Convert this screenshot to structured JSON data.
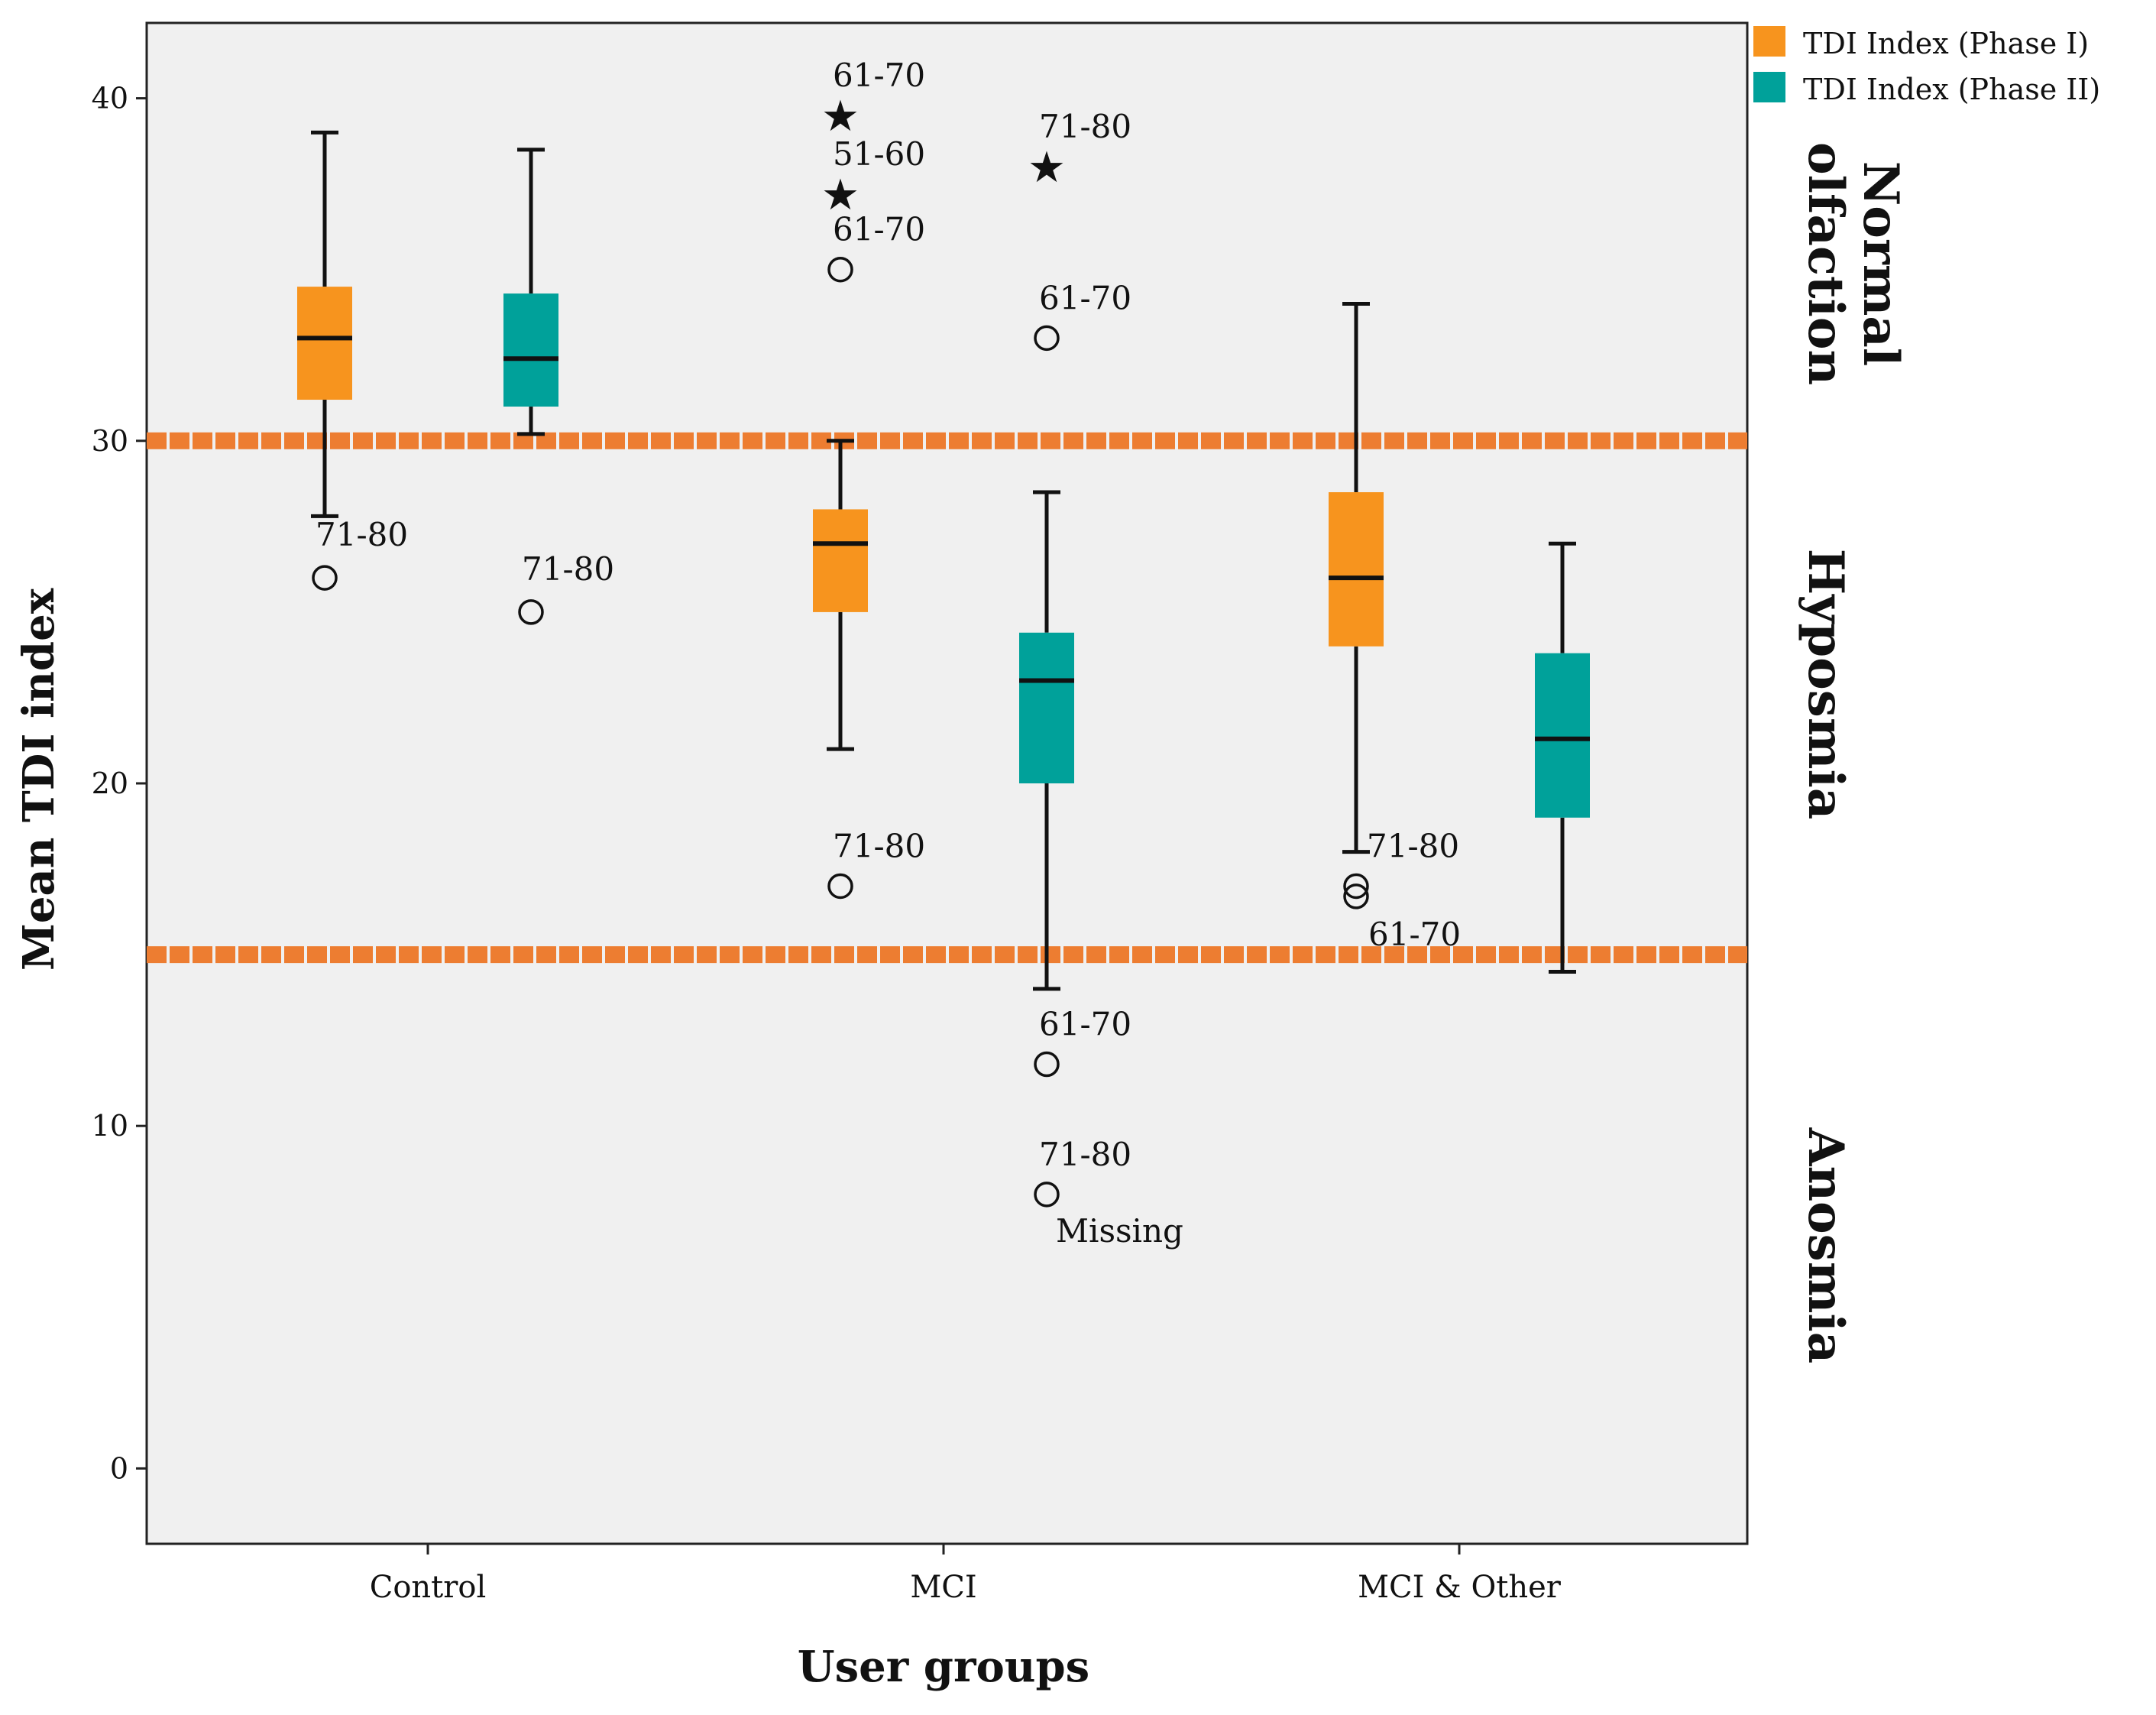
{
  "chart_data": {
    "type": "boxplot",
    "title": "",
    "xlabel": "User groups",
    "ylabel": "Mean TDI index",
    "ylim": [
      -2.2,
      42.2
    ],
    "yticks": [
      0,
      10,
      20,
      30,
      40
    ],
    "grid": false,
    "categories": [
      "Control",
      "MCI",
      "MCI & Other"
    ],
    "series": [
      {
        "name": "TDI Index (Phase I)",
        "color": "#F7941E",
        "boxes": [
          {
            "group": "Control",
            "whisker_low": 27.8,
            "q1": 31.2,
            "median": 33.0,
            "q3": 34.5,
            "whisker_high": 39.0,
            "outliers": [
              {
                "value": 26.0,
                "marker": "circle",
                "label": "71-80"
              }
            ]
          },
          {
            "group": "MCI",
            "whisker_low": 21.0,
            "q1": 25.0,
            "median": 27.0,
            "q3": 28.0,
            "whisker_high": 30.0,
            "outliers": [
              {
                "value": 39.5,
                "marker": "star",
                "label": "61-70"
              },
              {
                "value": 37.2,
                "marker": "star",
                "label": "51-60"
              },
              {
                "value": 35.0,
                "marker": "circle",
                "label": "61-70"
              },
              {
                "value": 17.0,
                "marker": "circle",
                "label": "71-80"
              }
            ]
          },
          {
            "group": "MCI & Other",
            "whisker_low": 18.0,
            "q1": 24.0,
            "median": 26.0,
            "q3": 28.5,
            "whisker_high": 34.0,
            "outliers": [
              {
                "value": 17.0,
                "marker": "circle",
                "label": "71-80"
              },
              {
                "value": 16.7,
                "marker": "circle",
                "label": "61-70"
              }
            ]
          }
        ]
      },
      {
        "name": "TDI Index (Phase II)",
        "color": "#00A19A",
        "boxes": [
          {
            "group": "Control",
            "whisker_low": 30.2,
            "q1": 31.0,
            "median": 32.4,
            "q3": 34.3,
            "whisker_high": 38.5,
            "outliers": [
              {
                "value": 25.0,
                "marker": "circle",
                "label": "71-80"
              }
            ]
          },
          {
            "group": "MCI",
            "whisker_low": 14.0,
            "q1": 20.0,
            "median": 23.0,
            "q3": 24.4,
            "whisker_high": 28.5,
            "outliers": [
              {
                "value": 38.0,
                "marker": "star",
                "label": "71-80"
              },
              {
                "value": 33.0,
                "marker": "circle",
                "label": "61-70"
              },
              {
                "value": 11.8,
                "marker": "circle",
                "label": "61-70"
              },
              {
                "value": 8.0,
                "marker": "circle",
                "label": "71-80",
                "label2": "Missing"
              }
            ]
          },
          {
            "group": "MCI & Other",
            "whisker_low": 14.5,
            "q1": 19.0,
            "median": 21.3,
            "q3": 23.8,
            "whisker_high": 27.0,
            "outliers": []
          }
        ]
      }
    ],
    "threshold_lines": [
      {
        "value": 30,
        "color": "#ED7D31"
      },
      {
        "value": 15,
        "color": "#ED7D31"
      }
    ],
    "zone_labels": [
      {
        "line1": "Normal",
        "line2": "olfaction"
      },
      {
        "line1": "Hyposmia"
      },
      {
        "line1": "Anosmia"
      }
    ],
    "legend": {
      "position": "top-right",
      "entries": [
        {
          "label": "TDI Index (Phase I)",
          "color": "#F7941E"
        },
        {
          "label": "TDI Index (Phase II)",
          "color": "#00A19A"
        }
      ]
    }
  }
}
